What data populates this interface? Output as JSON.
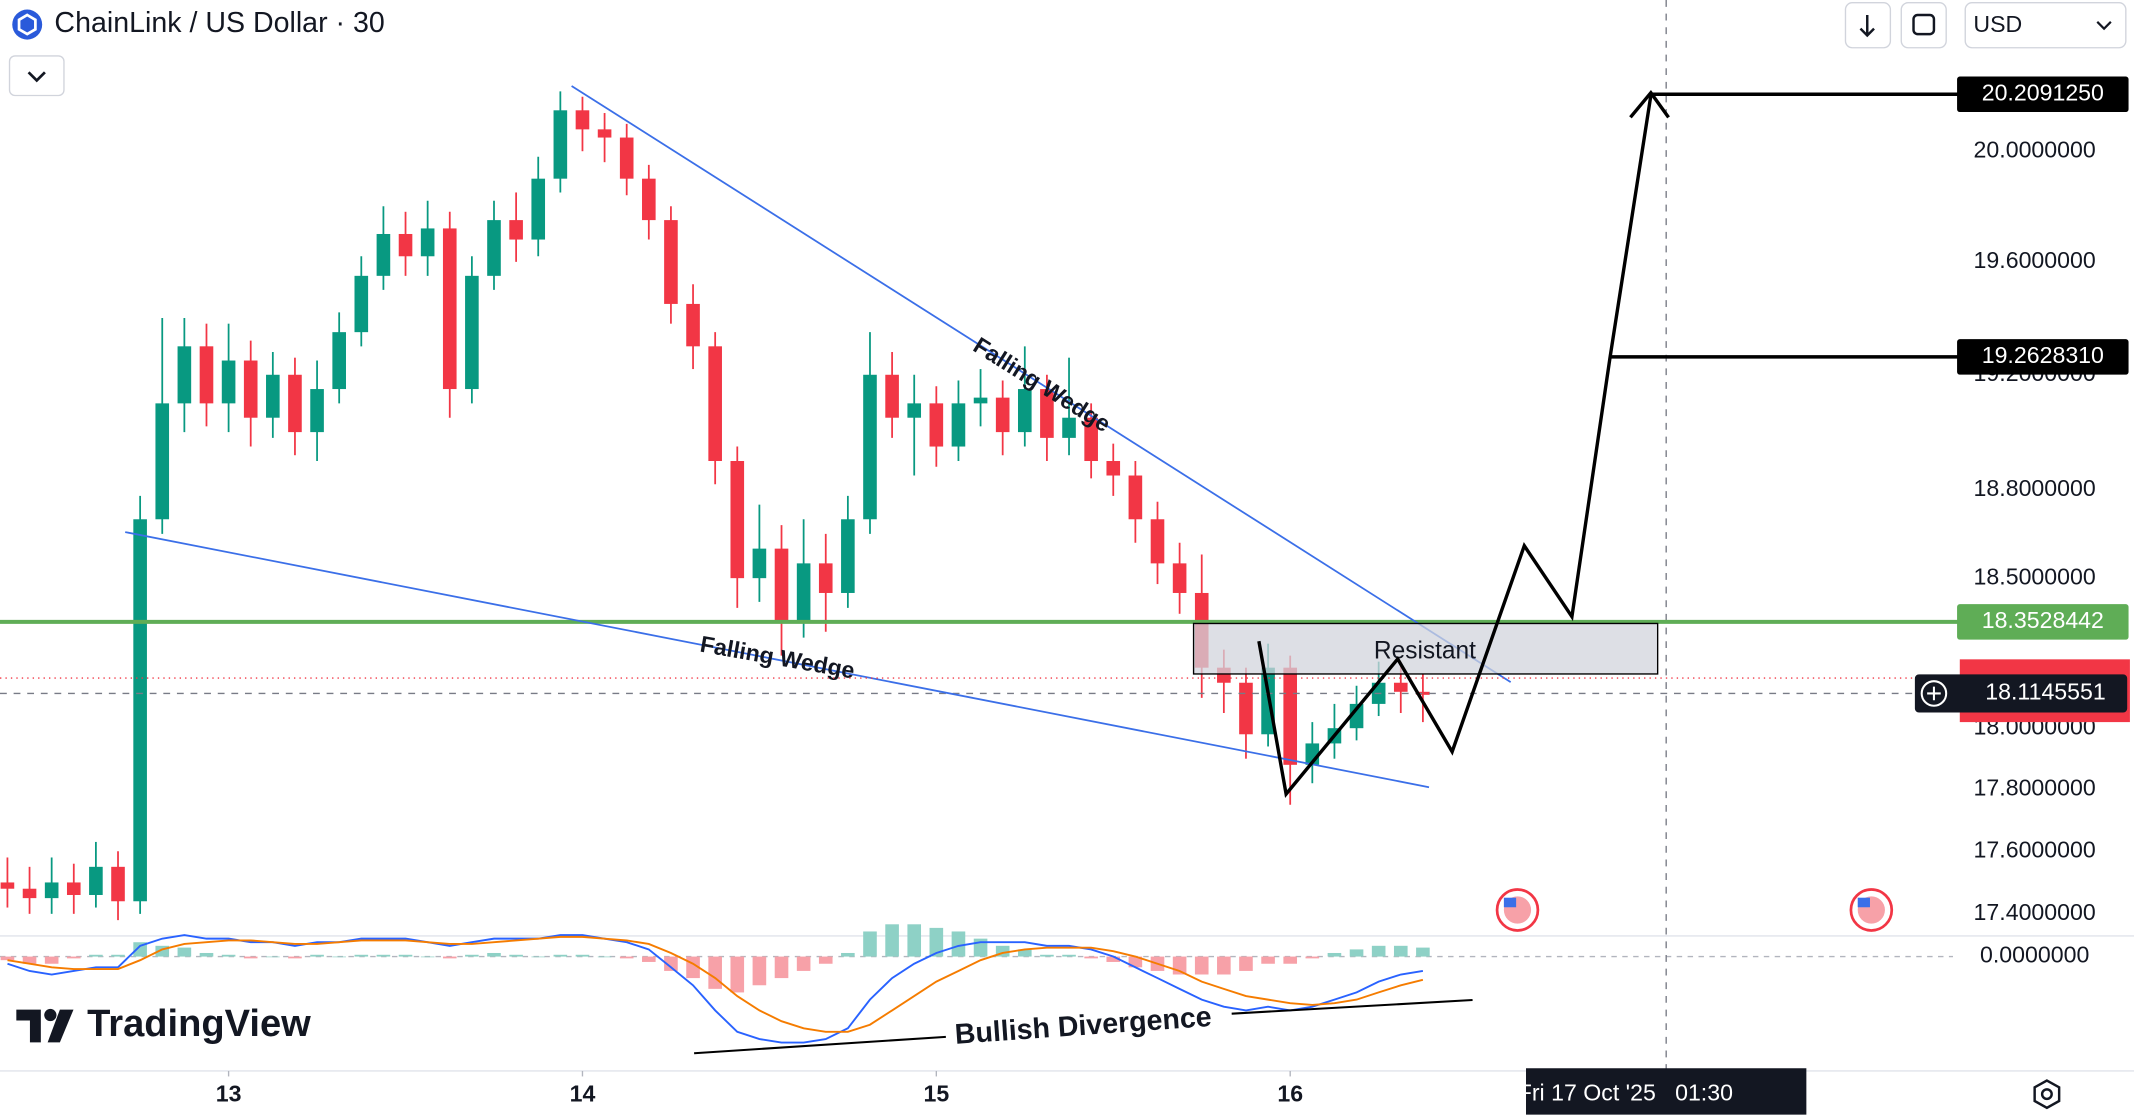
{
  "header": {
    "title": "ChainLink / US Dollar · 30",
    "currency": "USD"
  },
  "brand": "TradingView",
  "chart_data": {
    "type": "candlestick",
    "log_scale": true,
    "grid": false,
    "up_color": "#089981",
    "down_color": "#f23645",
    "x": [
      12.375,
      12.4375,
      12.5,
      12.5625,
      12.625,
      12.6875,
      12.75,
      12.8125,
      12.875,
      12.9375,
      13.0,
      13.0625,
      13.125,
      13.1875,
      13.25,
      13.3125,
      13.375,
      13.4375,
      13.5,
      13.5625,
      13.625,
      13.6875,
      13.75,
      13.8125,
      13.875,
      13.9375,
      14.0,
      14.0625,
      14.125,
      14.1875,
      14.25,
      14.3125,
      14.375,
      14.4375,
      14.5,
      14.5625,
      14.625,
      14.6875,
      14.75,
      14.8125,
      14.875,
      14.9375,
      15.0,
      15.0625,
      15.125,
      15.1875,
      15.25,
      15.3125,
      15.375,
      15.4375,
      15.5,
      15.5625,
      15.625,
      15.6875,
      15.75,
      15.8125,
      15.875,
      15.9375,
      16.0,
      16.0625,
      16.125,
      16.1875,
      16.25,
      16.3125,
      16.375
    ],
    "open": [
      17.5,
      17.48,
      17.45,
      17.5,
      17.46,
      17.55,
      17.44,
      18.7,
      19.1,
      19.3,
      19.1,
      19.25,
      19.05,
      19.2,
      19.0,
      19.15,
      19.35,
      19.55,
      19.7,
      19.62,
      19.72,
      19.15,
      19.55,
      19.75,
      19.68,
      19.9,
      20.15,
      20.08,
      20.05,
      19.9,
      19.75,
      19.45,
      19.3,
      18.9,
      18.5,
      18.6,
      18.35,
      18.55,
      18.45,
      18.7,
      19.2,
      19.05,
      19.1,
      18.95,
      19.1,
      19.12,
      19.0,
      19.15,
      18.98,
      19.05,
      18.9,
      18.85,
      18.7,
      18.55,
      18.45,
      18.2,
      18.15,
      17.98,
      18.2,
      17.88,
      17.95,
      18.0,
      18.08,
      18.15,
      18.12
    ],
    "high": [
      17.58,
      17.55,
      17.58,
      17.56,
      17.63,
      17.6,
      18.78,
      19.4,
      19.4,
      19.38,
      19.38,
      19.32,
      19.28,
      19.26,
      19.25,
      19.42,
      19.62,
      19.8,
      19.78,
      19.82,
      19.78,
      19.62,
      19.82,
      19.85,
      19.98,
      20.22,
      20.2,
      20.14,
      20.1,
      19.95,
      19.8,
      19.52,
      19.35,
      18.95,
      18.75,
      18.68,
      18.7,
      18.65,
      18.78,
      19.35,
      19.28,
      19.2,
      19.16,
      19.18,
      19.22,
      19.18,
      19.3,
      19.2,
      19.26,
      19.1,
      18.96,
      18.9,
      18.76,
      18.62,
      18.58,
      18.26,
      18.2,
      18.28,
      18.24,
      18.02,
      18.08,
      18.14,
      18.22,
      18.22,
      18.18
    ],
    "low": [
      17.42,
      17.4,
      17.4,
      17.4,
      17.42,
      17.38,
      17.4,
      18.65,
      19.0,
      19.02,
      19.0,
      18.95,
      18.98,
      18.92,
      18.9,
      19.1,
      19.3,
      19.5,
      19.55,
      19.55,
      19.05,
      19.1,
      19.5,
      19.6,
      19.62,
      19.85,
      20.0,
      19.96,
      19.84,
      19.68,
      19.38,
      19.22,
      18.82,
      18.4,
      18.42,
      18.24,
      18.3,
      18.32,
      18.4,
      18.65,
      18.98,
      18.85,
      18.88,
      18.9,
      19.02,
      18.92,
      18.95,
      18.9,
      18.92,
      18.84,
      18.78,
      18.62,
      18.48,
      18.38,
      18.1,
      18.05,
      17.9,
      17.94,
      17.75,
      17.82,
      17.9,
      17.96,
      18.04,
      18.05,
      18.02
    ],
    "close": [
      17.48,
      17.45,
      17.5,
      17.46,
      17.55,
      17.44,
      18.7,
      19.1,
      19.3,
      19.1,
      19.25,
      19.05,
      19.2,
      19.0,
      19.15,
      19.35,
      19.55,
      19.7,
      19.62,
      19.72,
      19.15,
      19.55,
      19.75,
      19.68,
      19.9,
      20.15,
      20.08,
      20.05,
      19.9,
      19.75,
      19.45,
      19.3,
      18.9,
      18.5,
      18.6,
      18.35,
      18.55,
      18.45,
      18.7,
      19.2,
      19.05,
      19.1,
      18.95,
      19.1,
      19.12,
      19.0,
      19.15,
      18.98,
      19.05,
      18.9,
      18.85,
      18.7,
      18.55,
      18.45,
      18.2,
      18.15,
      17.98,
      18.2,
      17.88,
      17.95,
      18.0,
      18.08,
      18.15,
      18.12,
      18.11
    ],
    "xlim": [
      12.354,
      17.873
    ],
    "xticks": [
      13,
      14,
      15,
      16
    ],
    "ylim": [
      17.33,
      20.56
    ],
    "yticks": [
      {
        "value": 17.4,
        "label": "17.4000000"
      },
      {
        "value": 17.6,
        "label": "17.6000000"
      },
      {
        "value": 17.8,
        "label": "17.8000000"
      },
      {
        "value": 18.0,
        "label": "18.0000000"
      },
      {
        "value": 18.5,
        "label": "18.5000000"
      },
      {
        "value": 18.8,
        "label": "18.8000000"
      },
      {
        "value": 19.2,
        "label": "19.2000000"
      },
      {
        "value": 19.6,
        "label": "19.6000000"
      },
      {
        "value": 20.0,
        "label": "20.0000000"
      }
    ],
    "levels": [
      {
        "value": 20.209125,
        "label": "20.2091250",
        "color": "#000000"
      },
      {
        "value": 19.262831,
        "label": "19.2628310",
        "color": "#000000"
      },
      {
        "value": 18.3528442,
        "label": "18.3528442",
        "color": "#5fad56"
      }
    ],
    "last_price": {
      "value": 18.1145551,
      "label": "18.1145551"
    },
    "crosshair": {
      "value": 17.0625,
      "label": "Fri 17 Oct '25   01:30"
    },
    "annotations": [
      "Falling Wedge",
      "Falling Wedge",
      "Resistant",
      "Bullish Divergence"
    ],
    "macd": {
      "macd_color": "#2962ff",
      "signal_color": "#f57c00",
      "hist_up_color": "#8ed1c6",
      "hist_down_color": "#f7a1a8",
      "ylim": [
        -0.3,
        0.05
      ],
      "yticks": [
        {
          "value": 0,
          "label": "0.0000000"
        }
      ],
      "macd": [
        -0.02,
        -0.04,
        -0.05,
        -0.04,
        -0.03,
        -0.03,
        0.03,
        0.05,
        0.06,
        0.05,
        0.05,
        0.04,
        0.04,
        0.03,
        0.04,
        0.04,
        0.05,
        0.05,
        0.05,
        0.04,
        0.03,
        0.04,
        0.05,
        0.05,
        0.05,
        0.06,
        0.06,
        0.05,
        0.04,
        0.02,
        -0.03,
        -0.08,
        -0.15,
        -0.21,
        -0.23,
        -0.24,
        -0.24,
        -0.23,
        -0.2,
        -0.12,
        -0.06,
        -0.02,
        0.01,
        0.03,
        0.04,
        0.04,
        0.04,
        0.03,
        0.03,
        0.02,
        0.0,
        -0.03,
        -0.06,
        -0.09,
        -0.12,
        -0.14,
        -0.15,
        -0.14,
        -0.15,
        -0.14,
        -0.12,
        -0.1,
        -0.07,
        -0.05,
        -0.04
      ],
      "signal": [
        -0.01,
        -0.02,
        -0.03,
        -0.035,
        -0.035,
        -0.035,
        -0.01,
        0.02,
        0.035,
        0.04,
        0.045,
        0.045,
        0.04,
        0.035,
        0.035,
        0.04,
        0.045,
        0.045,
        0.045,
        0.04,
        0.035,
        0.035,
        0.04,
        0.045,
        0.05,
        0.055,
        0.055,
        0.05,
        0.045,
        0.035,
        0.01,
        -0.02,
        -0.06,
        -0.11,
        -0.15,
        -0.18,
        -0.2,
        -0.21,
        -0.21,
        -0.19,
        -0.15,
        -0.11,
        -0.07,
        -0.04,
        -0.01,
        0.01,
        0.02,
        0.025,
        0.025,
        0.025,
        0.015,
        0.0,
        -0.02,
        -0.04,
        -0.07,
        -0.09,
        -0.11,
        -0.12,
        -0.13,
        -0.135,
        -0.13,
        -0.12,
        -0.1,
        -0.08,
        -0.065
      ],
      "histogram": [
        -0.01,
        -0.02,
        -0.02,
        -0.005,
        0.005,
        0.005,
        0.04,
        0.03,
        0.025,
        0.01,
        0.005,
        -0.005,
        0.0,
        -0.005,
        0.005,
        0.0,
        0.005,
        0.005,
        0.005,
        0.0,
        -0.005,
        0.005,
        0.01,
        0.005,
        0.0,
        0.005,
        0.005,
        0.0,
        -0.005,
        -0.015,
        -0.04,
        -0.06,
        -0.09,
        -0.1,
        -0.08,
        -0.06,
        -0.04,
        -0.02,
        0.01,
        0.07,
        0.09,
        0.09,
        0.08,
        0.07,
        0.05,
        0.03,
        0.02,
        0.005,
        0.005,
        -0.005,
        -0.015,
        -0.03,
        -0.04,
        -0.05,
        -0.05,
        -0.05,
        -0.04,
        -0.02,
        -0.02,
        -0.005,
        0.01,
        0.02,
        0.03,
        0.03,
        0.025
      ]
    }
  }
}
